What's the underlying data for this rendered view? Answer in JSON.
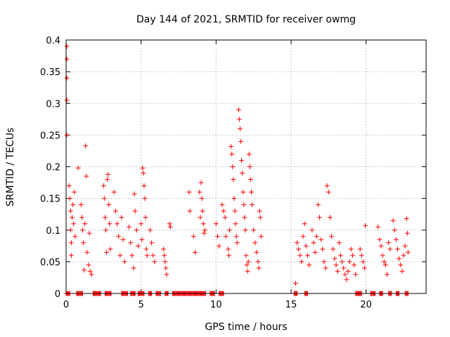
{
  "chart_data": {
    "type": "scatter",
    "title": "Day 144 of 2021, SRMTID for receiver owmg",
    "xlabel": "GPS time / hours",
    "ylabel": "SRMTID / TECUs",
    "xlim": [
      0,
      24
    ],
    "ylim": [
      0,
      0.4
    ],
    "xticks": [
      0,
      5,
      10,
      15,
      20
    ],
    "yticks": [
      0,
      0.05,
      0.1,
      0.15,
      0.2,
      0.25,
      0.3,
      0.35,
      0.4
    ],
    "xtick_labels": [
      "0",
      "5",
      "10",
      "15",
      "20"
    ],
    "ytick_labels": [
      "0",
      "0.05",
      "0.1",
      "0.15",
      "0.2",
      "0.25",
      "0.3",
      "0.35",
      "0.4"
    ],
    "grid": true,
    "marker": "+",
    "color": "#ff0000",
    "series": [
      {
        "name": "SRMTID",
        "points": [
          [
            0.05,
            0.39
          ],
          [
            0.05,
            0.37
          ],
          [
            0.05,
            0.34
          ],
          [
            0.05,
            0.305
          ],
          [
            0.05,
            0.25
          ],
          [
            0.2,
            0.17
          ],
          [
            0.25,
            0.15
          ],
          [
            0.3,
            0.13
          ],
          [
            0.3,
            0.1
          ],
          [
            0.35,
            0.08
          ],
          [
            0.35,
            0.06
          ],
          [
            0.4,
            0.12
          ],
          [
            0.45,
            0.14
          ],
          [
            0.5,
            0.11
          ],
          [
            0.55,
            0.16
          ],
          [
            0.6,
            0.09
          ],
          [
            0.8,
            0.198
          ],
          [
            1.0,
            0.14
          ],
          [
            1.05,
            0.12
          ],
          [
            1.1,
            0.1
          ],
          [
            1.15,
            0.08
          ],
          [
            1.2,
            0.037
          ],
          [
            1.25,
            0.11
          ],
          [
            1.3,
            0.233
          ],
          [
            1.35,
            0.185
          ],
          [
            1.4,
            0.065
          ],
          [
            1.5,
            0.045
          ],
          [
            1.6,
            0.035
          ],
          [
            1.7,
            0.03
          ],
          [
            1.55,
            0.095
          ],
          [
            2.5,
            0.17
          ],
          [
            2.55,
            0.15
          ],
          [
            2.6,
            0.12
          ],
          [
            2.65,
            0.1
          ],
          [
            2.7,
            0.065
          ],
          [
            2.75,
            0.18
          ],
          [
            2.8,
            0.188
          ],
          [
            2.85,
            0.14
          ],
          [
            2.9,
            0.11
          ],
          [
            2.95,
            0.07
          ],
          [
            3.2,
            0.16
          ],
          [
            3.3,
            0.13
          ],
          [
            3.4,
            0.11
          ],
          [
            3.5,
            0.09
          ],
          [
            3.6,
            0.06
          ],
          [
            3.7,
            0.12
          ],
          [
            3.8,
            0.085
          ],
          [
            3.9,
            0.05
          ],
          [
            4.2,
            0.105
          ],
          [
            4.3,
            0.08
          ],
          [
            4.4,
            0.06
          ],
          [
            4.5,
            0.04
          ],
          [
            4.55,
            0.157
          ],
          [
            4.6,
            0.13
          ],
          [
            4.7,
            0.1
          ],
          [
            4.8,
            0.075
          ],
          [
            5.1,
            0.198
          ],
          [
            5.15,
            0.19
          ],
          [
            5.2,
            0.17
          ],
          [
            5.25,
            0.15
          ],
          [
            5.3,
            0.12
          ],
          [
            5.0,
            0.11
          ],
          [
            5.05,
            0.085
          ],
          [
            5.35,
            0.07
          ],
          [
            5.4,
            0.06
          ],
          [
            5.6,
            0.1
          ],
          [
            5.7,
            0.08
          ],
          [
            5.8,
            0.06
          ],
          [
            5.9,
            0.05
          ],
          [
            6.5,
            0.07
          ],
          [
            6.55,
            0.06
          ],
          [
            6.6,
            0.05
          ],
          [
            6.65,
            0.04
          ],
          [
            6.7,
            0.03
          ],
          [
            6.9,
            0.11
          ],
          [
            6.95,
            0.105
          ],
          [
            8.2,
            0.16
          ],
          [
            8.25,
            0.13
          ],
          [
            8.5,
            0.09
          ],
          [
            8.6,
            0.065
          ],
          [
            9.0,
            0.175
          ],
          [
            9.05,
            0.15
          ],
          [
            9.1,
            0.13
          ],
          [
            9.15,
            0.11
          ],
          [
            9.2,
            0.095
          ],
          [
            8.9,
            0.16
          ],
          [
            8.95,
            0.12
          ],
          [
            9.25,
            0.1
          ],
          [
            10.0,
            0.11
          ],
          [
            10.1,
            0.09
          ],
          [
            10.2,
            0.075
          ],
          [
            10.4,
            0.14
          ],
          [
            10.5,
            0.13
          ],
          [
            10.6,
            0.12
          ],
          [
            10.65,
            0.09
          ],
          [
            10.8,
            0.07
          ],
          [
            10.85,
            0.06
          ],
          [
            10.9,
            0.1
          ],
          [
            11.0,
            0.232
          ],
          [
            11.05,
            0.22
          ],
          [
            11.1,
            0.2
          ],
          [
            11.15,
            0.18
          ],
          [
            11.2,
            0.15
          ],
          [
            11.25,
            0.13
          ],
          [
            11.3,
            0.11
          ],
          [
            11.35,
            0.09
          ],
          [
            11.4,
            0.08
          ],
          [
            11.5,
            0.29
          ],
          [
            11.55,
            0.275
          ],
          [
            11.6,
            0.26
          ],
          [
            11.65,
            0.24
          ],
          [
            11.7,
            0.21
          ],
          [
            11.75,
            0.19
          ],
          [
            11.8,
            0.16
          ],
          [
            11.85,
            0.14
          ],
          [
            11.9,
            0.12
          ],
          [
            11.95,
            0.1
          ],
          [
            12.0,
            0.06
          ],
          [
            12.05,
            0.045
          ],
          [
            12.1,
            0.035
          ],
          [
            12.15,
            0.05
          ],
          [
            12.2,
            0.22
          ],
          [
            12.25,
            0.2
          ],
          [
            12.3,
            0.18
          ],
          [
            12.35,
            0.16
          ],
          [
            12.4,
            0.14
          ],
          [
            12.5,
            0.1
          ],
          [
            12.6,
            0.08
          ],
          [
            12.7,
            0.065
          ],
          [
            12.8,
            0.05
          ],
          [
            12.85,
            0.04
          ],
          [
            12.9,
            0.13
          ],
          [
            12.95,
            0.12
          ],
          [
            13.0,
            0.09
          ],
          [
            15.3,
            0.016
          ],
          [
            15.4,
            0.08
          ],
          [
            15.5,
            0.07
          ],
          [
            15.6,
            0.06
          ],
          [
            15.7,
            0.05
          ],
          [
            15.8,
            0.09
          ],
          [
            15.9,
            0.11
          ],
          [
            16.0,
            0.075
          ],
          [
            16.1,
            0.06
          ],
          [
            16.2,
            0.045
          ],
          [
            16.4,
            0.1
          ],
          [
            16.5,
            0.08
          ],
          [
            16.6,
            0.065
          ],
          [
            16.7,
            0.09
          ],
          [
            16.8,
            0.14
          ],
          [
            16.9,
            0.12
          ],
          [
            17.0,
            0.085
          ],
          [
            17.1,
            0.07
          ],
          [
            17.2,
            0.05
          ],
          [
            17.3,
            0.04
          ],
          [
            17.4,
            0.17
          ],
          [
            17.5,
            0.16
          ],
          [
            17.6,
            0.12
          ],
          [
            17.7,
            0.09
          ],
          [
            17.8,
            0.07
          ],
          [
            17.9,
            0.055
          ],
          [
            18.0,
            0.045
          ],
          [
            18.1,
            0.035
          ],
          [
            18.2,
            0.08
          ],
          [
            18.3,
            0.06
          ],
          [
            18.4,
            0.05
          ],
          [
            18.5,
            0.04
          ],
          [
            18.6,
            0.03
          ],
          [
            18.7,
            0.022
          ],
          [
            18.8,
            0.035
          ],
          [
            18.9,
            0.05
          ],
          [
            19.0,
            0.07
          ],
          [
            19.1,
            0.06
          ],
          [
            19.2,
            0.045
          ],
          [
            19.3,
            0.03
          ],
          [
            19.6,
            0.07
          ],
          [
            19.7,
            0.06
          ],
          [
            19.8,
            0.05
          ],
          [
            19.9,
            0.04
          ],
          [
            19.95,
            0.107
          ],
          [
            20.8,
            0.105
          ],
          [
            20.9,
            0.085
          ],
          [
            21.0,
            0.075
          ],
          [
            21.1,
            0.06
          ],
          [
            21.2,
            0.05
          ],
          [
            21.3,
            0.045
          ],
          [
            21.4,
            0.03
          ],
          [
            21.5,
            0.08
          ],
          [
            21.6,
            0.07
          ],
          [
            21.8,
            0.115
          ],
          [
            21.9,
            0.1
          ],
          [
            22.0,
            0.085
          ],
          [
            22.1,
            0.07
          ],
          [
            22.2,
            0.055
          ],
          [
            22.3,
            0.045
          ],
          [
            22.4,
            0.035
          ],
          [
            22.5,
            0.06
          ],
          [
            22.6,
            0.075
          ],
          [
            22.7,
            0.118
          ],
          [
            22.75,
            0.095
          ],
          [
            22.8,
            0.065
          ]
        ],
        "zero_segments": [
          [
            0.0,
            0.25
          ],
          [
            0.7,
            1.1
          ],
          [
            1.8,
            2.3
          ],
          [
            2.6,
            3.0
          ],
          [
            3.7,
            4.1
          ],
          [
            4.3,
            4.6
          ],
          [
            4.8,
            5.2
          ],
          [
            5.5,
            5.7
          ],
          [
            6.0,
            6.3
          ],
          [
            6.6,
            6.8
          ],
          [
            7.1,
            9.3
          ],
          [
            9.6,
            9.9
          ],
          [
            10.2,
            10.5
          ],
          [
            15.2,
            15.4
          ],
          [
            15.9,
            16.1
          ],
          [
            19.3,
            19.7
          ],
          [
            20.3,
            20.6
          ],
          [
            20.9,
            21.1
          ],
          [
            21.5,
            21.7
          ],
          [
            22.0,
            22.2
          ],
          [
            22.6,
            22.8
          ]
        ]
      }
    ]
  }
}
